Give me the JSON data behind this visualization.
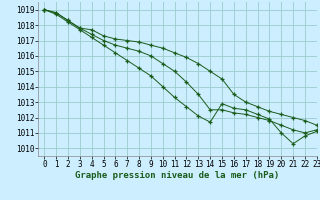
{
  "title": "Graphe pression niveau de la mer (hPa)",
  "bg_color": "#cceeff",
  "grid_color": "#99cccc",
  "line_color": "#1a5c1a",
  "xlim": [
    -0.5,
    23
  ],
  "ylim": [
    1009.5,
    1019.5
  ],
  "xticks": [
    0,
    1,
    2,
    3,
    4,
    5,
    6,
    7,
    8,
    9,
    10,
    11,
    12,
    13,
    14,
    15,
    16,
    17,
    18,
    19,
    20,
    21,
    22,
    23
  ],
  "yticks": [
    1010,
    1011,
    1012,
    1013,
    1014,
    1015,
    1016,
    1017,
    1018,
    1019
  ],
  "series": [
    [
      1019.0,
      1018.8,
      1018.3,
      1017.8,
      1017.7,
      1017.3,
      1017.1,
      1017.0,
      1016.9,
      1016.7,
      1016.5,
      1016.2,
      1015.9,
      1015.5,
      1015.0,
      1014.5,
      1013.5,
      1013.0,
      1012.7,
      1012.4,
      1012.2,
      1012.0,
      1011.8,
      1011.5
    ],
    [
      1019.0,
      1018.8,
      1018.3,
      1017.8,
      1017.4,
      1017.0,
      1016.7,
      1016.5,
      1016.3,
      1016.0,
      1015.5,
      1015.0,
      1014.3,
      1013.5,
      1012.5,
      1012.5,
      1012.3,
      1012.2,
      1012.0,
      1011.8,
      1011.5,
      1011.2,
      1011.0,
      1011.2
    ],
    [
      1019.0,
      1018.7,
      1018.2,
      1017.7,
      1017.2,
      1016.7,
      1016.2,
      1015.7,
      1015.2,
      1014.7,
      1014.0,
      1013.3,
      1012.7,
      1012.1,
      1011.7,
      1012.9,
      1012.6,
      1012.5,
      1012.2,
      1011.9,
      1011.0,
      1010.3,
      1010.8,
      1011.1
    ]
  ],
  "title_fontsize": 6.5,
  "tick_fontsize": 5.5
}
